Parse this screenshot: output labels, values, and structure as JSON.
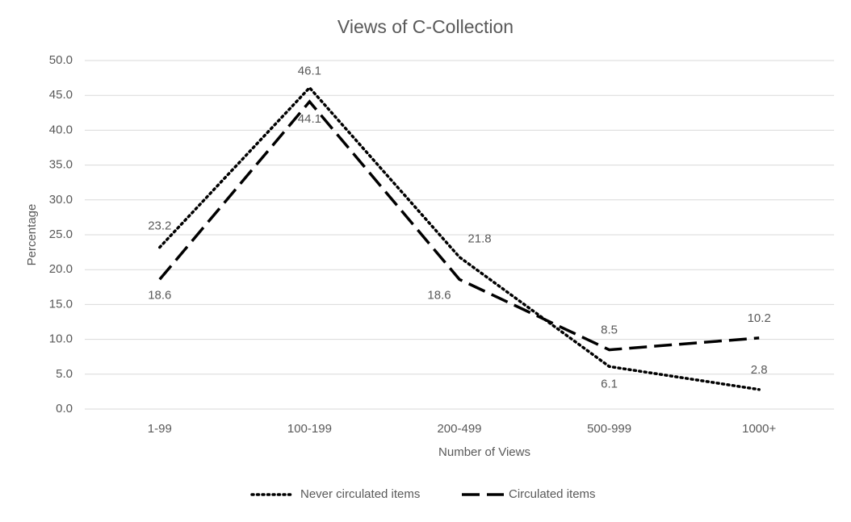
{
  "chart_data": {
    "type": "line",
    "title": "Views of C-Collection",
    "x_label": "Number of Views",
    "y_label": "Percentage",
    "categories": [
      "1-99",
      "100-199",
      "200-499",
      "500-999",
      "1000+"
    ],
    "series": [
      {
        "name": "Never circulated items",
        "color": "#000000",
        "dash": "dotted",
        "values": [
          23.2,
          46.1,
          21.8,
          6.1,
          2.8
        ]
      },
      {
        "name": "Circulated items",
        "color": "#000000",
        "dash": "dashed",
        "values": [
          18.6,
          44.1,
          18.6,
          8.5,
          10.2
        ]
      }
    ],
    "ylim": [
      0,
      50
    ],
    "yticks": [
      {
        "value": 0,
        "label": "0.0"
      },
      {
        "value": 5,
        "label": "5.0"
      },
      {
        "value": 10,
        "label": "10.0"
      },
      {
        "value": 15,
        "label": "15.0"
      },
      {
        "value": 20,
        "label": "20.0"
      },
      {
        "value": 25,
        "label": "25.0"
      },
      {
        "value": 30,
        "label": "30.0"
      },
      {
        "value": 35,
        "label": "35.0"
      },
      {
        "value": 40,
        "label": "40.0"
      },
      {
        "value": 45,
        "label": "45.0"
      },
      {
        "value": 50,
        "label": "50.0"
      }
    ],
    "grid": true,
    "legend": "bottom"
  }
}
